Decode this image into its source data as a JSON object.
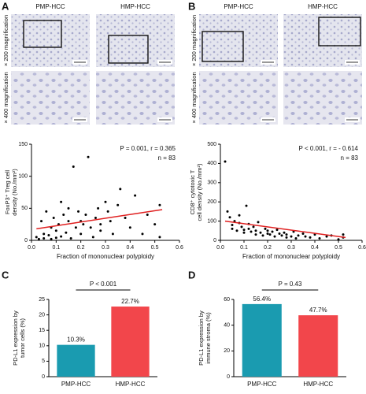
{
  "figure": {
    "panel_labels": [
      "A",
      "B",
      "C",
      "D"
    ],
    "images": [
      {
        "columns": [
          "PMP-HCC",
          "HMP-HCC"
        ],
        "rows": [
          "× 200 magnification",
          "× 400 magnification"
        ]
      },
      {
        "columns": [
          "PMP-HCC",
          "HMP-HCC"
        ],
        "rows": [
          "× 200 magnification",
          "× 400 magnification"
        ]
      }
    ]
  },
  "chart_data": [
    {
      "type": "scatter",
      "ylabel": [
        "FoxP3⁺ Treg cell",
        "density (No./mm²)"
      ],
      "xlabel": "Fraction of mononuclear polyploidy",
      "annotations": [
        "P = 0.001, r = 0.365",
        "n = 83"
      ],
      "xlim": [
        0,
        0.6
      ],
      "xticks": [
        {
          "value": 0,
          "label": "0.0"
        },
        0.1,
        0.2,
        0.3,
        0.4,
        0.5,
        0.6
      ],
      "ylim": [
        0,
        150
      ],
      "yticks": [
        0,
        50,
        100,
        150
      ],
      "points": {
        "color": "#000000",
        "x": [
          0.02,
          0.03,
          0.04,
          0.05,
          0.05,
          0.06,
          0.07,
          0.08,
          0.08,
          0.09,
          0.1,
          0.1,
          0.11,
          0.12,
          0.12,
          0.13,
          0.14,
          0.15,
          0.15,
          0.16,
          0.17,
          0.18,
          0.19,
          0.2,
          0.2,
          0.21,
          0.22,
          0.23,
          0.24,
          0.25,
          0.26,
          0.27,
          0.28,
          0.28,
          0.3,
          0.31,
          0.32,
          0.33,
          0.35,
          0.36,
          0.38,
          0.4,
          0.42,
          0.45,
          0.47,
          0.5,
          0.52,
          0.52
        ],
        "values": [
          5,
          2,
          30,
          10,
          3,
          45,
          8,
          20,
          2,
          35,
          15,
          4,
          25,
          60,
          6,
          40,
          12,
          30,
          50,
          3,
          115,
          20,
          45,
          10,
          30,
          25,
          40,
          130,
          20,
          5,
          35,
          50,
          15,
          25,
          60,
          45,
          30,
          10,
          55,
          80,
          35,
          20,
          70,
          10,
          40,
          25,
          55,
          5
        ]
      },
      "fit": {
        "color": "#e02020",
        "x": [
          0.02,
          0.53
        ],
        "values": [
          18,
          48
        ]
      }
    },
    {
      "type": "scatter",
      "ylabel": [
        "CD8⁺ cytotoxic T",
        "cell density (No./mm²)"
      ],
      "xlabel": "Fraction of mononuclear polyploidy",
      "annotations": [
        "P < 0.001, r = - 0.614",
        "n = 83"
      ],
      "xlim": [
        0,
        0.6
      ],
      "xticks": [
        {
          "value": 0,
          "label": "0.0"
        },
        0.1,
        0.2,
        0.3,
        0.4,
        0.5,
        0.6
      ],
      "ylim": [
        0,
        500
      ],
      "yticks": [
        0,
        100,
        200,
        300,
        400,
        500
      ],
      "points": {
        "color": "#000000",
        "x": [
          0.02,
          0.03,
          0.04,
          0.05,
          0.05,
          0.06,
          0.07,
          0.08,
          0.08,
          0.09,
          0.1,
          0.1,
          0.11,
          0.12,
          0.12,
          0.13,
          0.14,
          0.15,
          0.15,
          0.16,
          0.17,
          0.18,
          0.19,
          0.2,
          0.2,
          0.21,
          0.22,
          0.23,
          0.24,
          0.25,
          0.26,
          0.27,
          0.28,
          0.28,
          0.3,
          0.31,
          0.32,
          0.33,
          0.35,
          0.36,
          0.38,
          0.4,
          0.42,
          0.45,
          0.47,
          0.5,
          0.52,
          0.52
        ],
        "values": [
          410,
          150,
          120,
          80,
          60,
          100,
          50,
          90,
          130,
          70,
          55,
          40,
          180,
          60,
          85,
          45,
          70,
          30,
          50,
          95,
          40,
          25,
          60,
          35,
          50,
          30,
          45,
          20,
          55,
          35,
          25,
          40,
          15,
          30,
          20,
          45,
          10,
          25,
          35,
          20,
          15,
          30,
          10,
          20,
          25,
          5,
          15,
          30
        ]
      },
      "fit": {
        "color": "#e02020",
        "x": [
          0.02,
          0.53
        ],
        "values": [
          100,
          15
        ]
      }
    },
    {
      "type": "bar",
      "ylabel": [
        "PD-L1 expression by",
        "tumor cells (%)"
      ],
      "annotation": "P < 0.001",
      "categories": [
        "PMP-HCC",
        "HMP-HCC"
      ],
      "values": [
        10.3,
        22.7
      ],
      "value_labels": [
        "10.3%",
        "22.7%"
      ],
      "colors": [
        "#1a9bb0",
        "#f2464b"
      ],
      "ylim": [
        0,
        25
      ],
      "yticks": [
        0,
        5,
        10,
        15,
        20,
        25
      ]
    },
    {
      "type": "bar",
      "ylabel": [
        "PD-L1 expression by",
        "immune stroma (%)"
      ],
      "annotation": "P = 0.43",
      "categories": [
        "PMP-HCC",
        "HMP-HCC"
      ],
      "values": [
        56.4,
        47.7
      ],
      "value_labels": [
        "56.4%",
        "47.7%"
      ],
      "colors": [
        "#1a9bb0",
        "#f2464b"
      ],
      "ylim": [
        0,
        60
      ],
      "yticks": [
        0,
        20,
        40,
        60
      ]
    }
  ]
}
